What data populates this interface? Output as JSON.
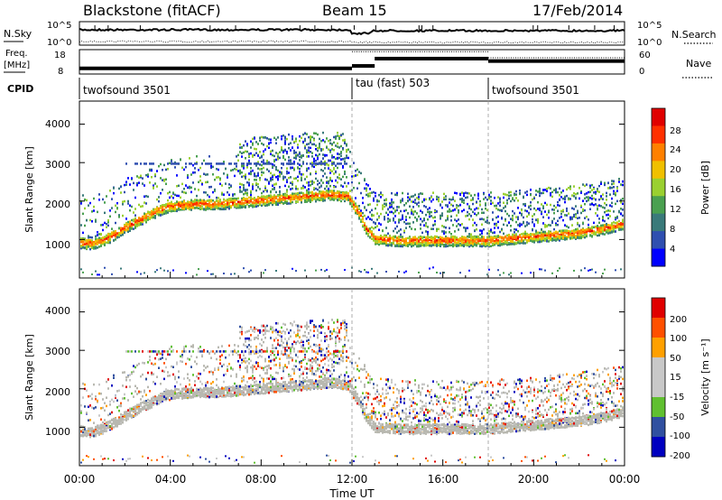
{
  "header": {
    "station": "Blackstone (fitACF)",
    "beam": "Beam 15",
    "date": "17/Feb/2014"
  },
  "sky_panel": {
    "left_label": "N.Sky",
    "right_label": "N.Search",
    "left_ticks": [
      "10^5",
      "10^0"
    ],
    "right_ticks": [
      "10^5",
      "10^0"
    ]
  },
  "freq_panel": {
    "left_label_line1": "Freq.",
    "left_label_line2": "[MHz]",
    "right_label": "Nave",
    "left_ticks": [
      "18",
      "8"
    ],
    "right_ticks": [
      "60",
      "0"
    ]
  },
  "cpid": {
    "label": "CPID",
    "segments": [
      {
        "name": "twofsound 3501",
        "start_hour": 0,
        "end_hour": 12
      },
      {
        "name": "tau (fast) 503",
        "start_hour": 12,
        "end_hour": 18
      },
      {
        "name": "twofsound 3501",
        "start_hour": 18,
        "end_hour": 24
      }
    ]
  },
  "x_axis": {
    "label": "Time UT",
    "tick_labels": [
      "00:00",
      "04:00",
      "08:00",
      "12:00",
      "16:00",
      "20:00",
      "00:00"
    ]
  },
  "power_panel": {
    "ylabel": "Slant Range [km]",
    "y_ticks": [
      "4000",
      "3000",
      "2000",
      "1000"
    ],
    "colorbar_label": "Power [dB]",
    "colorbar_ticks": [
      "28",
      "24",
      "20",
      "16",
      "12",
      "8",
      "4"
    ]
  },
  "velocity_panel": {
    "ylabel": "Slant Range [km]",
    "y_ticks": [
      "4000",
      "3000",
      "2000",
      "1000"
    ],
    "colorbar_label": "Velocity [m s⁻¹]",
    "colorbar_ticks": [
      "200",
      "100",
      "50",
      "15",
      "-15",
      "-50",
      "-100",
      "-200"
    ]
  },
  "colors": {
    "power_scale": [
      "#0000ff",
      "#2f4fb0",
      "#3a7a7a",
      "#4aa050",
      "#9ad030",
      "#f0c000",
      "#ff8000",
      "#ff3000",
      "#e00000"
    ],
    "velocity_scale": [
      "#e00000",
      "#ff5000",
      "#ffa000",
      "#c8c8c8",
      "#c8c8c8",
      "#60c030",
      "#3050a0",
      "#0000c0"
    ],
    "ground_scatter": "#b8b8b0"
  },
  "chart_data": {
    "type": "heatmap",
    "x_unit": "hours UT",
    "xlim": [
      0,
      24
    ],
    "ylim_km": [
      0,
      4600
    ],
    "ground_band_km": [
      [
        0.0,
        950
      ],
      [
        0.5,
        920
      ],
      [
        1.0,
        1000
      ],
      [
        1.5,
        1150
      ],
      [
        2.0,
        1350
      ],
      [
        2.5,
        1500
      ],
      [
        3.0,
        1650
      ],
      [
        3.5,
        1800
      ],
      [
        4.0,
        1900
      ],
      [
        5.0,
        1950
      ],
      [
        6.0,
        1950
      ],
      [
        7.0,
        2000
      ],
      [
        8.0,
        2050
      ],
      [
        9.0,
        2100
      ],
      [
        10.0,
        2150
      ],
      [
        11.0,
        2200
      ],
      [
        11.8,
        2150
      ],
      [
        12.3,
        1700
      ],
      [
        12.6,
        1300
      ],
      [
        13.0,
        1050
      ],
      [
        14.0,
        1000
      ],
      [
        16.0,
        1000
      ],
      [
        18.0,
        1000
      ],
      [
        19.0,
        1050
      ],
      [
        20.0,
        1100
      ],
      [
        21.0,
        1150
      ],
      [
        22.0,
        1200
      ],
      [
        23.0,
        1300
      ],
      [
        24.0,
        1450
      ]
    ],
    "frequency_mhz": [
      {
        "start_hour": 0,
        "end_hour": 12,
        "value": 10.5
      },
      {
        "start_hour": 12,
        "end_hour": 13,
        "value": 11.5
      },
      {
        "start_hour": 13,
        "end_hour": 18,
        "value": 14.5
      },
      {
        "start_hour": 18,
        "end_hour": 24,
        "value": 13.5
      }
    ],
    "nave": [
      {
        "start_hour": 0,
        "end_hour": 12,
        "value": 15
      },
      {
        "start_hour": 12,
        "end_hour": 18,
        "value": 55
      },
      {
        "start_hour": 18,
        "end_hour": 24,
        "value": 40
      }
    ]
  }
}
